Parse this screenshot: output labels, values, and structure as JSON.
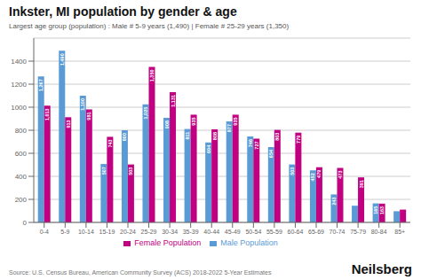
{
  "chart_data": {
    "type": "bar",
    "title": "Inkster, MI population by gender & age",
    "subtitle": "Largest age group (population) : Male # 5-9 years (1,490) | Female # 25-29 years (1,350)",
    "categories": [
      "0-4",
      "5-9",
      "10-14",
      "15-19",
      "20-24",
      "25-29",
      "30-34",
      "35-39",
      "40-44",
      "45-49",
      "50-54",
      "55-59",
      "60-64",
      "65-69",
      "70-74",
      "75-79",
      "80-84",
      "85+"
    ],
    "series": [
      {
        "name": "Male Population",
        "color": "#5b9bd5",
        "values": [
          1267,
          1490,
          1100,
          507,
          800,
          1025,
          908,
          811,
          694,
          877,
          746,
          654,
          503,
          452,
          243,
          145,
          165,
          97
        ],
        "value_labels": [
          "1,267",
          "1,490",
          "1,100",
          "507",
          "800",
          "1,025",
          "908",
          "811",
          "694",
          "877",
          "746",
          "654",
          "503",
          "452",
          "243",
          null,
          "165",
          null
        ]
      },
      {
        "name": "Female Population",
        "color": "#c00080",
        "values": [
          1013,
          913,
          981,
          743,
          503,
          1350,
          1131,
          935,
          808,
          935,
          727,
          803,
          779,
          479,
          473,
          391,
          163,
          111
        ],
        "value_labels": [
          "1,013",
          "913",
          "981",
          "743",
          "503",
          "1,350",
          "1,131",
          "935",
          "808",
          "935",
          "727",
          "803",
          "779",
          "479",
          "473",
          "391",
          "163",
          null
        ]
      }
    ],
    "ylim": [
      0,
      1600
    ],
    "yticks": [
      0,
      200,
      400,
      600,
      800,
      1000,
      1200,
      1400
    ],
    "grid": true,
    "legend": "bottom",
    "data_labels": true,
    "annotations": [
      "Source: U.S. Census Bureau, American Community Survey (ACS) 2018-2022 5-Year Estimates",
      "Neilsberg"
    ]
  }
}
